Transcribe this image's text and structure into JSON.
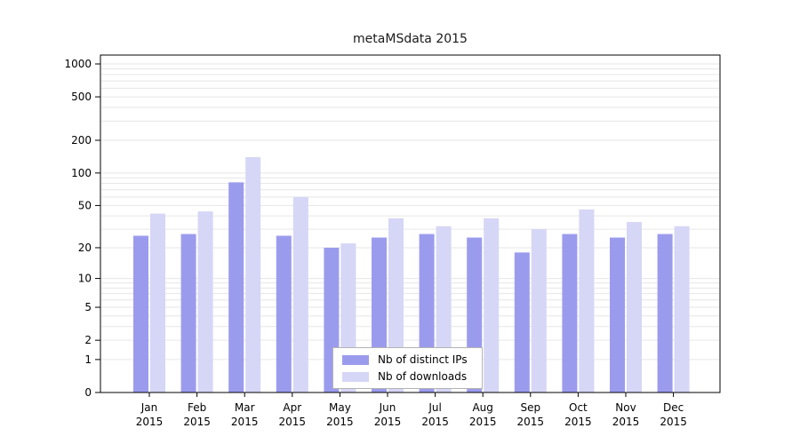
{
  "title": "metaMSdata 2015",
  "chart_data": {
    "type": "bar",
    "title": "metaMSdata 2015",
    "scale": "log1p",
    "grid": true,
    "gridline_color": "#e6e6e6",
    "legend_position": "bottom-center",
    "categories": [
      "Jan",
      "Feb",
      "Mar",
      "Apr",
      "May",
      "Jun",
      "Jul",
      "Aug",
      "Sep",
      "Oct",
      "Nov",
      "Dec"
    ],
    "x_year_label": "2015",
    "series": [
      {
        "name": "Nb of distinct IPs",
        "color": "#9b9bee",
        "values": [
          26,
          27,
          82,
          26,
          20,
          25,
          27,
          25,
          18,
          27,
          25,
          27
        ]
      },
      {
        "name": "Nb of downloads",
        "color": "#d6d6f6",
        "values": [
          42,
          44,
          140,
          60,
          22,
          38,
          32,
          38,
          30,
          46,
          35,
          32
        ]
      }
    ],
    "y_ticks": [
      0,
      1,
      2,
      5,
      10,
      20,
      50,
      100,
      200,
      500,
      1000
    ],
    "ylim": [
      0,
      1000
    ]
  }
}
